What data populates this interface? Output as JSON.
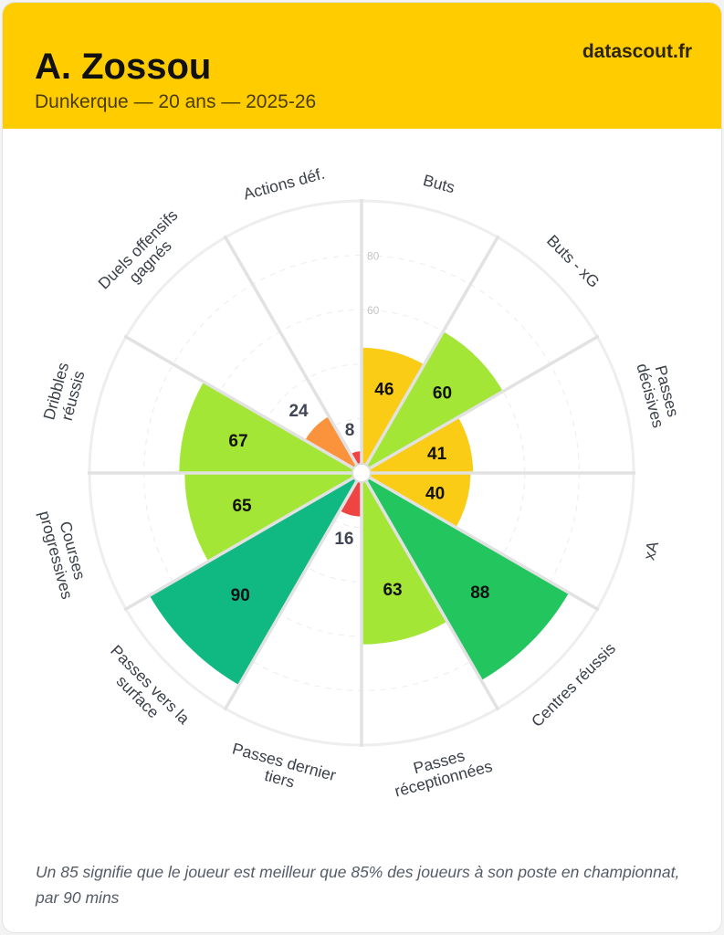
{
  "header": {
    "player": "A. Zossou",
    "subtitle": "Dunkerque — 20 ans — 2025-26",
    "brand": "datascout.fr"
  },
  "chart_data": {
    "type": "polar-bar",
    "title": "A. Zossou",
    "range": [
      0,
      100
    ],
    "grid_ticks": [
      60,
      80
    ],
    "categories": [
      {
        "label": [
          "Buts"
        ],
        "value": 46
      },
      {
        "label": [
          "Buts - xG"
        ],
        "value": 60
      },
      {
        "label": [
          "Passes",
          "décisives"
        ],
        "value": 41
      },
      {
        "label": [
          "xA"
        ],
        "value": 40
      },
      {
        "label": [
          "Centres réussis"
        ],
        "value": 88
      },
      {
        "label": [
          "Passes",
          "réceptionnées"
        ],
        "value": 63
      },
      {
        "label": [
          "Passes dernier",
          "tiers"
        ],
        "value": 16
      },
      {
        "label": [
          "Passes vers la",
          "surface"
        ],
        "value": 90
      },
      {
        "label": [
          "Courses",
          "progressives"
        ],
        "value": 65
      },
      {
        "label": [
          "Dribbles",
          "réussis"
        ],
        "value": 67
      },
      {
        "label": [
          "Duels offensifs",
          "gagnés"
        ],
        "value": 24
      },
      {
        "label": [
          "Actions déf."
        ],
        "value": 8
      }
    ],
    "colors": {
      "red": "#ef4444",
      "orange": "#fb923c",
      "yellow": "#facc15",
      "lime": "#a3e635",
      "green": "#22c55e",
      "teal": "#10b981"
    }
  },
  "footer": {
    "note": "Un 85 signifie que le joueur est meilleur que 85% des joueurs à son poste en championnat, par 90 mins"
  }
}
